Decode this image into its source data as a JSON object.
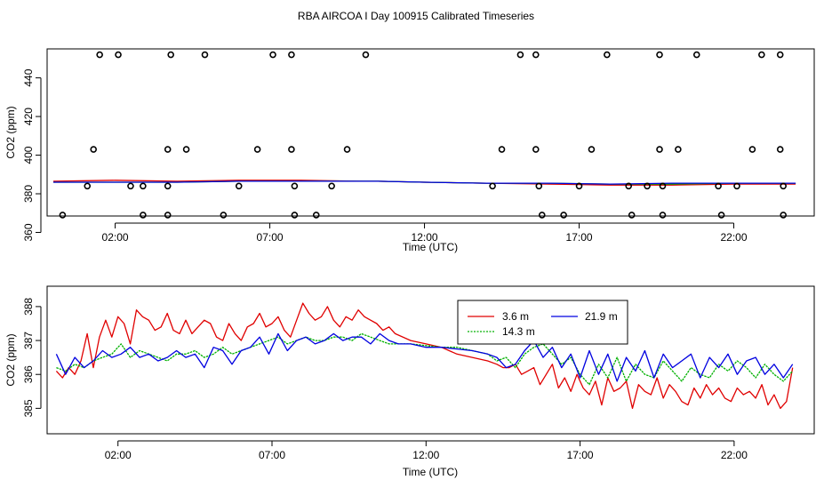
{
  "title": "RBA AIRCOA I  Day 100915  Calibrated Timeseries",
  "chart_data": [
    {
      "type": "scatter",
      "xlabel": "Time (UTC)",
      "ylabel": "CO2 (ppm)",
      "xticks": [
        "02:00",
        "07:00",
        "12:00",
        "17:00",
        "22:00"
      ],
      "xtick_hours": [
        2,
        7,
        12,
        17,
        22
      ],
      "yticks": [
        360,
        380,
        400,
        420,
        440
      ],
      "xlim": [
        -0.2,
        24.6
      ],
      "ylim": [
        368.5,
        455
      ],
      "grid": false,
      "colors": {
        "3.6 m": "#e00000",
        "14.3 m": "#00b000",
        "21.9 m": "#0000e0",
        "points": "#000000"
      },
      "point_series": {
        "name": "",
        "x": [
          1.5,
          2.1,
          3.8,
          4.9,
          7.1,
          7.7,
          10.1,
          15.1,
          15.6,
          17.9,
          19.6,
          20.8,
          22.9,
          23.5,
          1.3,
          3.7,
          4.3,
          6.6,
          7.7,
          9.5,
          14.5,
          15.6,
          17.4,
          19.6,
          20.2,
          22.6,
          23.5,
          1.1,
          2.5,
          2.9,
          3.7,
          6.0,
          7.8,
          9.0,
          14.2,
          15.7,
          17.0,
          18.6,
          19.2,
          19.7,
          21.5,
          22.1,
          23.6,
          0.3,
          2.9,
          3.7,
          5.5,
          7.8,
          8.5,
          15.8,
          16.5,
          18.7,
          19.7,
          21.6,
          23.6
        ],
        "y": [
          452,
          452,
          452,
          452,
          452,
          452,
          452,
          452,
          452,
          452,
          452,
          452,
          452,
          452,
          403,
          403,
          403,
          403,
          403,
          403,
          403,
          403,
          403,
          403,
          403,
          403,
          403,
          384,
          384,
          384,
          384,
          384,
          384,
          384,
          384,
          384,
          384,
          384,
          384,
          384,
          384,
          384,
          384,
          369,
          369,
          369,
          369,
          369,
          369,
          369,
          369,
          369,
          369,
          369,
          369
        ]
      },
      "line_series": [
        {
          "name": "3.6 m",
          "x": [
            0,
            2,
            4,
            6,
            8,
            10,
            10.5,
            12,
            14,
            16,
            18,
            20,
            22,
            24
          ],
          "y": [
            386.5,
            387,
            386.5,
            387,
            387,
            386.5,
            386.5,
            386,
            385.5,
            385,
            384.5,
            384.5,
            385,
            385
          ]
        },
        {
          "name": "14.3 m",
          "x": [
            0,
            2,
            4,
            6,
            8,
            10,
            10.5,
            12,
            14,
            16,
            18,
            20,
            22,
            24
          ],
          "y": [
            386,
            386,
            386,
            386.5,
            386.5,
            386.5,
            386.5,
            386,
            385.5,
            385.5,
            385,
            385,
            385.5,
            385.5
          ]
        },
        {
          "name": "21.9 m",
          "x": [
            0,
            2,
            4,
            6,
            8,
            10,
            10.5,
            12,
            14,
            16,
            18,
            20,
            22,
            24
          ],
          "y": [
            386,
            386,
            386,
            386.5,
            386.5,
            386.5,
            386.5,
            386,
            385.5,
            385.5,
            385,
            385.5,
            385.5,
            385.5
          ]
        }
      ]
    },
    {
      "type": "line",
      "xlabel": "Time (UTC)",
      "ylabel": "CO2 (ppm)",
      "xticks": [
        "02:00",
        "07:00",
        "12:00",
        "17:00",
        "22:00"
      ],
      "xtick_hours": [
        2,
        7,
        12,
        17,
        22
      ],
      "yticks": [
        385,
        386,
        387,
        388
      ],
      "xlim": [
        -0.3,
        24.6
      ],
      "ylim": [
        384.25,
        388.6
      ],
      "grid": false,
      "legend": "top-center",
      "series": [
        {
          "name": "3.6 m",
          "color": "#e00000",
          "x": [
            0,
            0.2,
            0.4,
            0.6,
            0.8,
            1.0,
            1.2,
            1.4,
            1.6,
            1.8,
            2.0,
            2.2,
            2.4,
            2.6,
            2.8,
            3.0,
            3.2,
            3.4,
            3.6,
            3.8,
            4.0,
            4.2,
            4.4,
            4.6,
            4.8,
            5.0,
            5.2,
            5.4,
            5.6,
            5.8,
            6.0,
            6.2,
            6.4,
            6.6,
            6.8,
            7.0,
            7.2,
            7.4,
            7.6,
            7.8,
            8.0,
            8.2,
            8.4,
            8.6,
            8.8,
            9.0,
            9.2,
            9.4,
            9.6,
            9.8,
            10.0,
            10.2,
            10.4,
            10.6,
            10.8,
            11.0,
            11.5,
            12.0,
            12.5,
            13.0,
            13.5,
            14.0,
            14.3,
            14.5,
            14.7,
            14.9,
            15.1,
            15.3,
            15.5,
            15.7,
            15.9,
            16.1,
            16.3,
            16.5,
            16.7,
            16.9,
            17.1,
            17.3,
            17.5,
            17.7,
            17.9,
            18.1,
            18.3,
            18.5,
            18.7,
            18.9,
            19.1,
            19.3,
            19.5,
            19.7,
            19.9,
            20.1,
            20.3,
            20.5,
            20.7,
            20.9,
            21.1,
            21.3,
            21.5,
            21.7,
            21.9,
            22.1,
            22.3,
            22.5,
            22.7,
            22.9,
            23.1,
            23.3,
            23.5,
            23.7,
            23.9
          ],
          "y": [
            386.1,
            385.9,
            386.2,
            386.0,
            386.4,
            387.2,
            386.2,
            387.1,
            387.6,
            387.1,
            387.7,
            387.5,
            386.9,
            387.9,
            387.7,
            387.6,
            387.3,
            387.4,
            387.8,
            387.3,
            387.2,
            387.6,
            387.2,
            387.4,
            387.6,
            387.5,
            387.1,
            387.0,
            387.5,
            387.2,
            387.0,
            387.4,
            387.5,
            387.8,
            387.4,
            387.5,
            387.7,
            387.3,
            387.1,
            387.6,
            388.1,
            387.8,
            387.6,
            387.7,
            388.0,
            387.6,
            387.4,
            387.7,
            387.6,
            387.9,
            387.7,
            387.6,
            387.5,
            387.3,
            387.4,
            387.2,
            387.0,
            386.9,
            386.8,
            386.6,
            386.5,
            386.4,
            386.3,
            386.2,
            386.2,
            386.3,
            386.0,
            386.1,
            386.2,
            385.7,
            386.0,
            386.3,
            385.6,
            385.9,
            385.5,
            386.0,
            385.6,
            385.4,
            385.8,
            385.1,
            385.9,
            385.5,
            385.6,
            385.8,
            385.0,
            385.7,
            385.5,
            385.4,
            385.9,
            385.3,
            385.7,
            385.5,
            385.2,
            385.1,
            385.6,
            385.3,
            385.7,
            385.4,
            385.6,
            385.3,
            385.2,
            385.6,
            385.4,
            385.5,
            385.3,
            385.7,
            385.1,
            385.4,
            385.0,
            385.2,
            386.2
          ]
        },
        {
          "name": "14.3 m",
          "color": "#00b000",
          "x": [
            0,
            0.3,
            0.6,
            0.9,
            1.2,
            1.5,
            1.8,
            2.1,
            2.4,
            2.7,
            3.0,
            3.3,
            3.6,
            3.9,
            4.2,
            4.5,
            4.8,
            5.1,
            5.4,
            5.7,
            6.0,
            6.3,
            6.6,
            6.9,
            7.2,
            7.5,
            7.8,
            8.1,
            8.4,
            8.7,
            9.0,
            9.3,
            9.6,
            9.9,
            10.2,
            10.5,
            10.8,
            11.1,
            11.5,
            12.0,
            12.5,
            13.0,
            13.5,
            14.0,
            14.3,
            14.6,
            14.9,
            15.2,
            15.5,
            15.8,
            16.1,
            16.4,
            16.7,
            17.0,
            17.3,
            17.6,
            17.9,
            18.2,
            18.5,
            18.8,
            19.1,
            19.4,
            19.7,
            20.0,
            20.3,
            20.6,
            20.9,
            21.2,
            21.5,
            21.8,
            22.1,
            22.4,
            22.7,
            23.0,
            23.3,
            23.6,
            23.9
          ],
          "y": [
            386.2,
            386.1,
            386.3,
            386.2,
            386.4,
            386.5,
            386.6,
            386.9,
            386.5,
            386.7,
            386.6,
            386.5,
            386.4,
            386.6,
            386.6,
            386.7,
            386.5,
            386.6,
            386.8,
            386.6,
            386.7,
            386.8,
            386.9,
            387.0,
            387.1,
            386.9,
            387.0,
            387.1,
            387.0,
            387.0,
            387.1,
            387.1,
            387.0,
            387.2,
            387.1,
            387.0,
            386.9,
            386.9,
            386.9,
            386.85,
            386.8,
            386.8,
            386.7,
            386.6,
            386.4,
            386.5,
            386.2,
            386.6,
            386.8,
            386.9,
            386.6,
            386.3,
            386.5,
            386.0,
            385.7,
            386.3,
            385.9,
            386.5,
            385.8,
            386.3,
            386.0,
            385.9,
            386.4,
            386.1,
            385.8,
            386.2,
            386.0,
            385.9,
            386.3,
            386.1,
            386.4,
            386.2,
            385.9,
            386.3,
            386.0,
            385.8,
            386.1
          ]
        },
        {
          "name": "21.9 m",
          "color": "#0000e0",
          "x": [
            0,
            0.3,
            0.6,
            0.9,
            1.2,
            1.5,
            1.8,
            2.1,
            2.4,
            2.7,
            3.0,
            3.3,
            3.6,
            3.9,
            4.2,
            4.5,
            4.8,
            5.1,
            5.4,
            5.7,
            6.0,
            6.3,
            6.6,
            6.9,
            7.2,
            7.5,
            7.8,
            8.1,
            8.4,
            8.7,
            9.0,
            9.3,
            9.6,
            9.9,
            10.2,
            10.5,
            10.8,
            11.1,
            11.5,
            12.0,
            12.5,
            13.0,
            13.5,
            14.0,
            14.3,
            14.6,
            14.9,
            15.2,
            15.5,
            15.8,
            16.1,
            16.4,
            16.7,
            17.0,
            17.3,
            17.6,
            17.9,
            18.2,
            18.5,
            18.8,
            19.1,
            19.4,
            19.7,
            20.0,
            20.3,
            20.6,
            20.9,
            21.2,
            21.5,
            21.8,
            22.1,
            22.4,
            22.7,
            23.0,
            23.3,
            23.6,
            23.9
          ],
          "y": [
            386.6,
            386.0,
            386.5,
            386.2,
            386.4,
            386.7,
            386.5,
            386.6,
            386.8,
            386.5,
            386.6,
            386.4,
            386.5,
            386.7,
            386.5,
            386.6,
            386.2,
            386.8,
            386.7,
            386.3,
            386.7,
            386.8,
            387.1,
            386.6,
            387.2,
            386.7,
            387.0,
            387.1,
            386.9,
            387.0,
            387.2,
            387.0,
            387.1,
            387.1,
            386.9,
            387.2,
            387.0,
            386.9,
            386.9,
            386.8,
            386.8,
            386.75,
            386.7,
            386.6,
            386.5,
            386.2,
            386.3,
            386.7,
            387.0,
            386.5,
            386.8,
            386.2,
            386.6,
            385.9,
            386.7,
            386.0,
            386.6,
            385.8,
            386.5,
            386.1,
            386.7,
            385.9,
            386.6,
            386.2,
            386.4,
            386.6,
            385.9,
            386.5,
            386.2,
            386.6,
            386.0,
            386.4,
            386.5,
            386.0,
            386.3,
            385.9,
            386.3
          ]
        }
      ]
    }
  ]
}
